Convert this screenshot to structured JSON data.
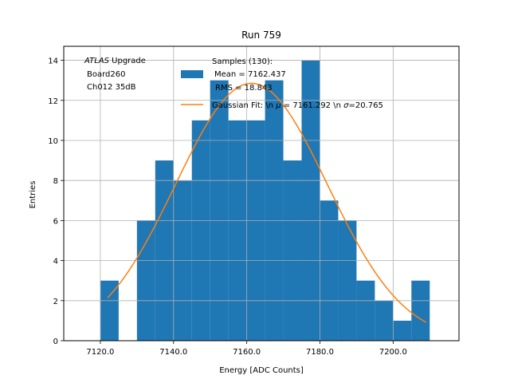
{
  "chart_data": {
    "type": "bar",
    "title": "Run 759",
    "xlabel": "Energy [ADC Counts]",
    "ylabel": "Entries",
    "xlim": [
      7110,
      7218
    ],
    "ylim": [
      0,
      14.7
    ],
    "grid": true,
    "bin_width": 5,
    "bins": [
      {
        "x0": 7120,
        "count": 3
      },
      {
        "x0": 7125,
        "count": 0
      },
      {
        "x0": 7130,
        "count": 6
      },
      {
        "x0": 7135,
        "count": 9
      },
      {
        "x0": 7140,
        "count": 8
      },
      {
        "x0": 7145,
        "count": 11
      },
      {
        "x0": 7150,
        "count": 13
      },
      {
        "x0": 7155,
        "count": 11
      },
      {
        "x0": 7160,
        "count": 11
      },
      {
        "x0": 7165,
        "count": 13
      },
      {
        "x0": 7170,
        "count": 9
      },
      {
        "x0": 7175,
        "count": 14
      },
      {
        "x0": 7180,
        "count": 7
      },
      {
        "x0": 7185,
        "count": 6
      },
      {
        "x0": 7190,
        "count": 3
      },
      {
        "x0": 7195,
        "count": 2
      },
      {
        "x0": 7200,
        "count": 1
      },
      {
        "x0": 7205,
        "count": 3
      }
    ],
    "xticks": [
      {
        "value": 7120,
        "label": "7120.0"
      },
      {
        "value": 7140,
        "label": "7140.0"
      },
      {
        "value": 7160,
        "label": "7160.0"
      },
      {
        "value": 7180,
        "label": "7180.0"
      },
      {
        "value": 7200,
        "label": "7200.0"
      }
    ],
    "yticks": [
      {
        "value": 0,
        "label": "0"
      },
      {
        "value": 2,
        "label": "2"
      },
      {
        "value": 4,
        "label": "4"
      },
      {
        "value": 6,
        "label": "6"
      },
      {
        "value": 8,
        "label": "8"
      },
      {
        "value": 10,
        "label": "10"
      },
      {
        "value": 12,
        "label": "12"
      },
      {
        "value": 14,
        "label": "14"
      }
    ],
    "fit": {
      "amplitude": 12.85,
      "mu": 7161.292,
      "sigma": 20.765,
      "x_range": [
        7122,
        7209
      ],
      "color": "#ff7f0e"
    },
    "bar_color": "#1f77b4",
    "annotation": {
      "line1_italic": "ATLAS",
      "line1_rest": " Upgrade",
      "line2": "Board260",
      "line3": "Ch012 35dB"
    },
    "legend": {
      "placement": "top-center",
      "title": "Samples (130):",
      "hist_line1": "Mean = 7162.437",
      "hist_line2": "RMS = 18.843",
      "fit_label_a": "Gaussian Fit: \\n ",
      "fit_mu_symbol": "μ",
      "fit_label_b": " = 7161.292 \\n ",
      "fit_sigma_symbol": "σ",
      "fit_label_c": "=20.765"
    }
  }
}
